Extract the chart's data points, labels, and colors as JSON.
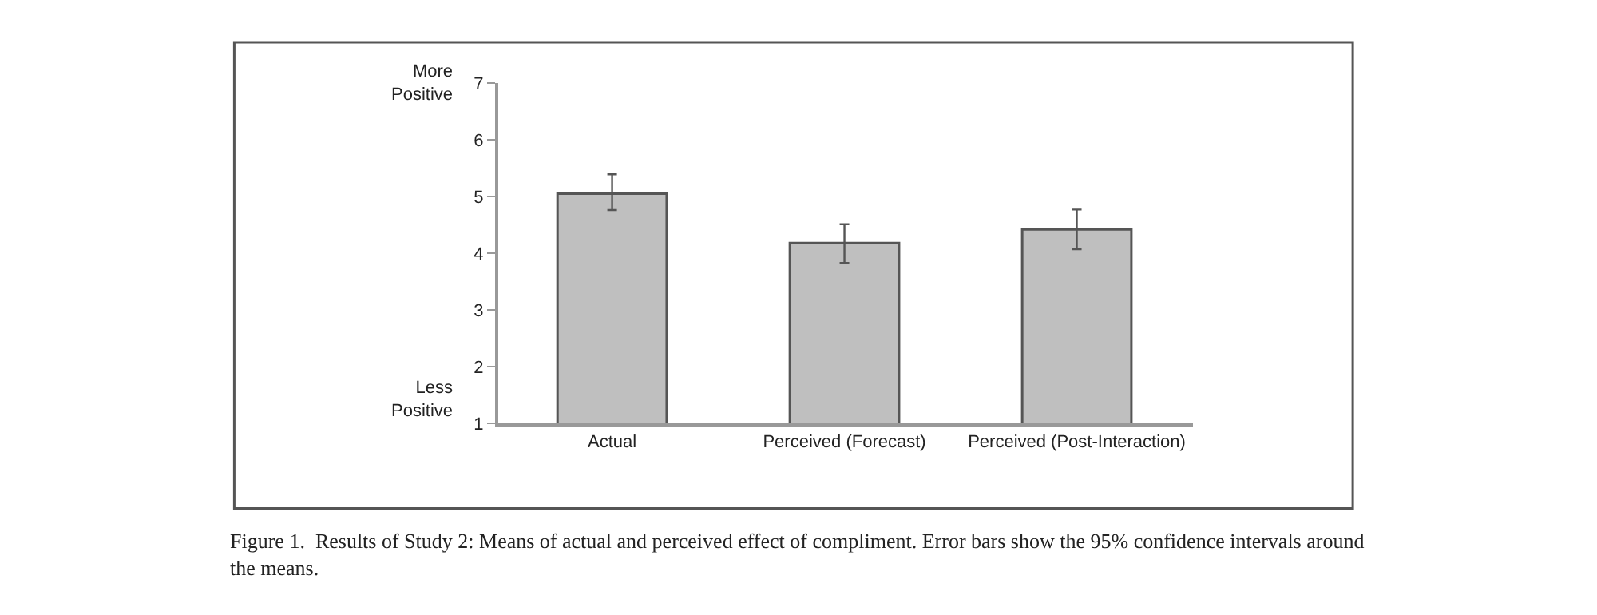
{
  "chart_data": {
    "type": "bar",
    "categories": [
      "Actual",
      "Perceived (Forecast)",
      "Perceived (Post-Interaction)"
    ],
    "values": [
      5.05,
      4.18,
      4.42
    ],
    "errors": [
      [
        4.76,
        5.39
      ],
      [
        3.83,
        4.51
      ],
      [
        4.07,
        4.77
      ]
    ],
    "color": "#bfbfbf",
    "ylim": [
      1,
      7
    ],
    "yticks": [
      1,
      2,
      3,
      4,
      5,
      6,
      7
    ],
    "annotations": [
      "More\nPositive",
      "Less\nPositive",
      "Figure 1.  Results of Study 2: Means of actual and perceived effect of compliment. Error bars show the 95% confidence intervals around\nthe means."
    ]
  }
}
